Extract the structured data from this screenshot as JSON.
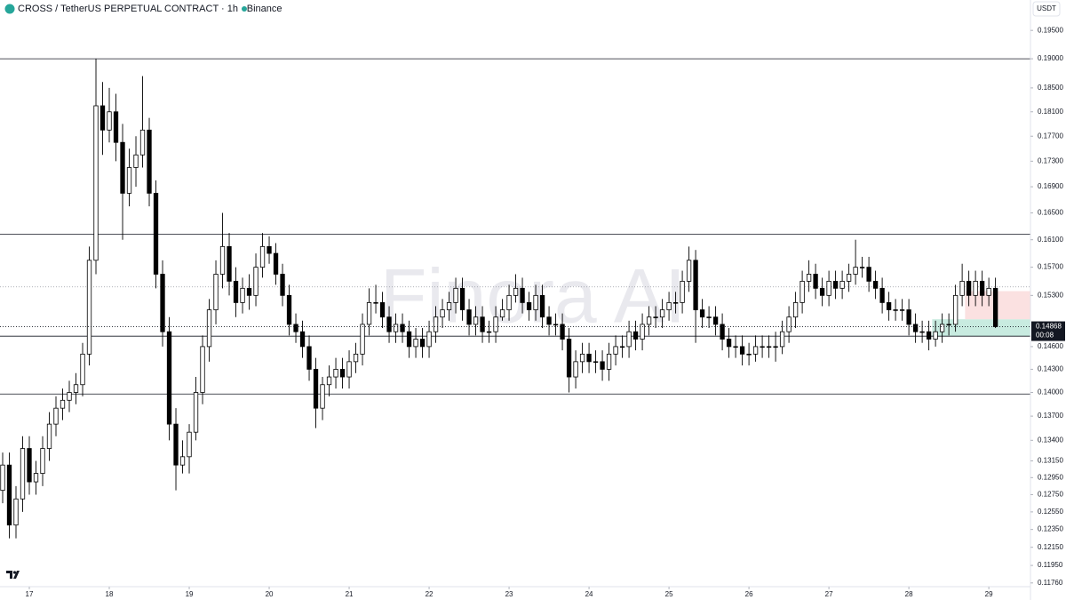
{
  "chart_data": {
    "type": "candlestick",
    "title": "CROSS / TetherUS PERPETUAL CONTRACT · 1h · Binance",
    "currency": "USDT",
    "watermark": "Finora AI",
    "countdown": "00:08",
    "log_scale": true,
    "up_color": "#ffffff",
    "down_color": "#000000",
    "outline_color": "#000000",
    "xlim": [
      -8.8,
      300.5
    ],
    "ylim": [
      0.1172,
      0.2005
    ],
    "xticks": [
      {
        "value": 0,
        "label": "17"
      },
      {
        "value": 24,
        "label": "18"
      },
      {
        "value": 48,
        "label": "19"
      },
      {
        "value": 72,
        "label": "20"
      },
      {
        "value": 96,
        "label": "21"
      },
      {
        "value": 120,
        "label": "22"
      },
      {
        "value": 144,
        "label": "23"
      },
      {
        "value": 168,
        "label": "24"
      },
      {
        "value": 192,
        "label": "25"
      },
      {
        "value": 216,
        "label": "26"
      },
      {
        "value": 240,
        "label": "27"
      },
      {
        "value": 264,
        "label": "28"
      },
      {
        "value": 288,
        "label": "29"
      }
    ],
    "yticks": [
      {
        "value": 0.195,
        "label": "0.19500"
      },
      {
        "value": 0.19,
        "label": "0.19000"
      },
      {
        "value": 0.185,
        "label": "0.18500"
      },
      {
        "value": 0.181,
        "label": "0.18100"
      },
      {
        "value": 0.177,
        "label": "0.17700"
      },
      {
        "value": 0.173,
        "label": "0.17300"
      },
      {
        "value": 0.169,
        "label": "0.16900"
      },
      {
        "value": 0.165,
        "label": "0.16500"
      },
      {
        "value": 0.161,
        "label": "0.16100"
      },
      {
        "value": 0.157,
        "label": "0.15700"
      },
      {
        "value": 0.153,
        "label": "0.15300"
      },
      {
        "value": 0.146,
        "label": "0.14600"
      },
      {
        "value": 0.143,
        "label": "0.14300"
      },
      {
        "value": 0.14,
        "label": "0.14000"
      },
      {
        "value": 0.137,
        "label": "0.13700"
      },
      {
        "value": 0.134,
        "label": "0.13400"
      },
      {
        "value": 0.1315,
        "label": "0.13150"
      },
      {
        "value": 0.1295,
        "label": "0.12950"
      },
      {
        "value": 0.1275,
        "label": "0.12750"
      },
      {
        "value": 0.1255,
        "label": "0.12550"
      },
      {
        "value": 0.1235,
        "label": "0.12350"
      },
      {
        "value": 0.1215,
        "label": "0.12150"
      },
      {
        "value": 0.1195,
        "label": "0.11950"
      },
      {
        "value": 0.1176,
        "label": "0.11760"
      }
    ],
    "levels": [
      0.19,
      0.1618,
      0.1474,
      0.1398
    ],
    "dotted_levels": [
      0.1542
    ],
    "position": {
      "start": 271,
      "entry": 0.1497,
      "stop": 0.1536,
      "target": 0.1474,
      "target_color": "#c8ebe0",
      "stop_color": "#fbe1e1"
    },
    "x": [
      -8,
      -6,
      -4,
      -2,
      0,
      2,
      4,
      6,
      8,
      10,
      12,
      14,
      16,
      18,
      20,
      22,
      24,
      26,
      28,
      30,
      32,
      34,
      36,
      38,
      40,
      42,
      44,
      46,
      48,
      50,
      52,
      54,
      56,
      58,
      60,
      62,
      64,
      66,
      68,
      70,
      72,
      74,
      76,
      78,
      80,
      82,
      84,
      86,
      88,
      90,
      92,
      94,
      96,
      98,
      100,
      102,
      104,
      106,
      108,
      110,
      112,
      114,
      116,
      118,
      120,
      122,
      124,
      126,
      128,
      130,
      132,
      134,
      136,
      138,
      140,
      142,
      144,
      146,
      148,
      150,
      152,
      154,
      156,
      158,
      160,
      162,
      164,
      166,
      168,
      170,
      172,
      174,
      176,
      178,
      180,
      182,
      184,
      186,
      188,
      190,
      192,
      194,
      196,
      198,
      200,
      202,
      204,
      206,
      208,
      210,
      212,
      214,
      216,
      218,
      220,
      222,
      224,
      226,
      228,
      230,
      232,
      234,
      236,
      238,
      240,
      242,
      244,
      246,
      248,
      250,
      252,
      254,
      256,
      258,
      260,
      262,
      264,
      266,
      268,
      270,
      272,
      274,
      276,
      278,
      280,
      282,
      284,
      286,
      288,
      290
    ],
    "open": [
      0.128,
      0.131,
      0.124,
      0.127,
      0.133,
      0.129,
      0.13,
      0.133,
      0.136,
      0.138,
      0.139,
      0.14,
      0.141,
      0.145,
      0.158,
      0.182,
      0.178,
      0.181,
      0.176,
      0.168,
      0.172,
      0.174,
      0.178,
      0.168,
      0.156,
      0.148,
      0.136,
      0.131,
      0.132,
      0.135,
      0.14,
      0.146,
      0.151,
      0.156,
      0.16,
      0.155,
      0.152,
      0.154,
      0.153,
      0.157,
      0.16,
      0.159,
      0.156,
      0.153,
      0.149,
      0.148,
      0.146,
      0.143,
      0.138,
      0.141,
      0.142,
      0.143,
      0.142,
      0.144,
      0.145,
      0.149,
      0.152,
      0.152,
      0.15,
      0.148,
      0.149,
      0.148,
      0.146,
      0.147,
      0.146,
      0.148,
      0.15,
      0.151,
      0.152,
      0.154,
      0.151,
      0.149,
      0.15,
      0.148,
      0.148,
      0.15,
      0.151,
      0.153,
      0.154,
      0.152,
      0.151,
      0.153,
      0.15,
      0.149,
      0.149,
      0.147,
      0.142,
      0.144,
      0.145,
      0.144,
      0.144,
      0.143,
      0.145,
      0.146,
      0.146,
      0.148,
      0.147,
      0.149,
      0.15,
      0.15,
      0.151,
      0.152,
      0.152,
      0.155,
      0.158,
      0.151,
      0.15,
      0.15,
      0.149,
      0.147,
      0.146,
      0.146,
      0.145,
      0.145,
      0.146,
      0.146,
      0.146,
      0.146,
      0.148,
      0.15,
      0.152,
      0.155,
      0.156,
      0.154,
      0.153,
      0.155,
      0.154,
      0.155,
      0.156,
      0.157,
      0.157,
      0.155,
      0.154,
      0.152,
      0.151,
      0.151,
      0.151,
      0.149,
      0.148,
      0.148,
      0.147,
      0.148,
      0.149,
      0.149,
      0.153,
      0.155,
      0.153,
      0.155,
      0.153,
      0.154
    ],
    "high": [
      0.1325,
      0.1325,
      0.1285,
      0.1345,
      0.1345,
      0.1315,
      0.1345,
      0.1375,
      0.1395,
      0.1405,
      0.1415,
      0.1425,
      0.1465,
      0.16,
      0.19,
      0.186,
      0.185,
      0.184,
      0.179,
      0.175,
      0.177,
      0.187,
      0.18,
      0.17,
      0.158,
      0.15,
      0.138,
      0.134,
      0.136,
      0.142,
      0.1475,
      0.1525,
      0.158,
      0.165,
      0.162,
      0.157,
      0.1555,
      0.156,
      0.159,
      0.162,
      0.1615,
      0.1605,
      0.1575,
      0.1545,
      0.1505,
      0.1495,
      0.1475,
      0.1445,
      0.142,
      0.1435,
      0.1445,
      0.1445,
      0.1455,
      0.1465,
      0.1505,
      0.154,
      0.1545,
      0.1535,
      0.1515,
      0.1505,
      0.1505,
      0.1495,
      0.1485,
      0.1485,
      0.1495,
      0.1515,
      0.1525,
      0.1535,
      0.1555,
      0.1555,
      0.1525,
      0.1515,
      0.1515,
      0.1495,
      0.1515,
      0.1525,
      0.1545,
      0.156,
      0.1555,
      0.1535,
      0.1545,
      0.1545,
      0.1515,
      0.1505,
      0.1505,
      0.1485,
      0.1455,
      0.1465,
      0.1465,
      0.1455,
      0.1455,
      0.1465,
      0.1475,
      0.1475,
      0.1495,
      0.1495,
      0.1505,
      0.1515,
      0.1515,
      0.1525,
      0.1535,
      0.1535,
      0.1565,
      0.16,
      0.1595,
      0.1525,
      0.1515,
      0.1515,
      0.1505,
      0.1485,
      0.1475,
      0.1475,
      0.1465,
      0.1475,
      0.1475,
      0.1475,
      0.148,
      0.1495,
      0.1515,
      0.1535,
      0.1565,
      0.158,
      0.1575,
      0.1555,
      0.1565,
      0.1565,
      0.1565,
      0.1575,
      0.161,
      0.1585,
      0.1585,
      0.1565,
      0.1555,
      0.1535,
      0.1525,
      0.1525,
      0.1525,
      0.1505,
      0.1495,
      0.1495,
      0.1495,
      0.1505,
      0.1505,
      0.1545,
      0.1575,
      0.1565,
      0.1565,
      0.1565,
      0.1555,
      0.1555
    ],
    "low": [
      0.1265,
      0.1225,
      0.1225,
      0.1255,
      0.1275,
      0.1275,
      0.1285,
      0.1315,
      0.1345,
      0.1365,
      0.1375,
      0.1385,
      0.1395,
      0.1435,
      0.156,
      0.174,
      0.176,
      0.173,
      0.161,
      0.166,
      0.169,
      0.172,
      0.166,
      0.154,
      0.146,
      0.134,
      0.128,
      0.13,
      0.13,
      0.134,
      0.1385,
      0.144,
      0.149,
      0.154,
      0.153,
      0.15,
      0.1505,
      0.151,
      0.1515,
      0.1555,
      0.1575,
      0.1545,
      0.1515,
      0.1475,
      0.1465,
      0.1445,
      0.1415,
      0.1355,
      0.1365,
      0.1395,
      0.1405,
      0.1405,
      0.1405,
      0.1425,
      0.1435,
      0.1475,
      0.1505,
      0.1485,
      0.1465,
      0.1465,
      0.1465,
      0.1445,
      0.1445,
      0.1445,
      0.1445,
      0.1465,
      0.1485,
      0.1495,
      0.1505,
      0.1495,
      0.1475,
      0.1475,
      0.1465,
      0.1465,
      0.1465,
      0.1495,
      0.1495,
      0.152,
      0.1505,
      0.1495,
      0.1495,
      0.1485,
      0.1475,
      0.1475,
      0.1455,
      0.14,
      0.1405,
      0.1425,
      0.1425,
      0.1425,
      0.1415,
      0.1415,
      0.1435,
      0.1445,
      0.1445,
      0.1455,
      0.1455,
      0.1475,
      0.1485,
      0.1485,
      0.1495,
      0.1505,
      0.1505,
      0.1535,
      0.1465,
      0.1485,
      0.1485,
      0.1475,
      0.1455,
      0.1445,
      0.1445,
      0.1435,
      0.1435,
      0.144,
      0.1445,
      0.1445,
      0.144,
      0.145,
      0.1465,
      0.1485,
      0.1505,
      0.1535,
      0.1525,
      0.1515,
      0.1515,
      0.1525,
      0.1525,
      0.1535,
      0.1545,
      0.1555,
      0.1535,
      0.1525,
      0.1505,
      0.1495,
      0.1495,
      0.1495,
      0.1475,
      0.1465,
      0.1465,
      0.1455,
      0.146,
      0.1465,
      0.1475,
      0.148,
      0.1515,
      0.1515,
      0.1515,
      0.1515,
      0.1515,
      0.1485
    ],
    "close": [
      0.131,
      0.124,
      0.127,
      0.133,
      0.129,
      0.13,
      0.133,
      0.136,
      0.138,
      0.139,
      0.14,
      0.141,
      0.145,
      0.158,
      0.182,
      0.178,
      0.181,
      0.176,
      0.168,
      0.172,
      0.174,
      0.178,
      0.168,
      0.156,
      0.148,
      0.136,
      0.131,
      0.132,
      0.135,
      0.14,
      0.146,
      0.151,
      0.156,
      0.16,
      0.155,
      0.152,
      0.154,
      0.153,
      0.157,
      0.16,
      0.159,
      0.156,
      0.153,
      0.149,
      0.148,
      0.146,
      0.143,
      0.138,
      0.141,
      0.142,
      0.143,
      0.142,
      0.144,
      0.145,
      0.149,
      0.152,
      0.152,
      0.15,
      0.148,
      0.149,
      0.148,
      0.146,
      0.147,
      0.146,
      0.148,
      0.15,
      0.151,
      0.152,
      0.154,
      0.151,
      0.149,
      0.15,
      0.148,
      0.148,
      0.15,
      0.151,
      0.153,
      0.154,
      0.152,
      0.151,
      0.153,
      0.15,
      0.149,
      0.149,
      0.147,
      0.142,
      0.144,
      0.145,
      0.144,
      0.144,
      0.143,
      0.145,
      0.146,
      0.146,
      0.148,
      0.147,
      0.149,
      0.15,
      0.15,
      0.151,
      0.152,
      0.152,
      0.155,
      0.158,
      0.151,
      0.15,
      0.15,
      0.149,
      0.147,
      0.146,
      0.146,
      0.145,
      0.145,
      0.146,
      0.146,
      0.146,
      0.146,
      0.148,
      0.15,
      0.152,
      0.155,
      0.156,
      0.154,
      0.153,
      0.155,
      0.154,
      0.155,
      0.156,
      0.157,
      0.157,
      0.155,
      0.154,
      0.152,
      0.151,
      0.151,
      0.151,
      0.149,
      0.148,
      0.148,
      0.147,
      0.148,
      0.149,
      0.149,
      0.153,
      0.155,
      0.153,
      0.155,
      0.153,
      0.154,
      0.14868
    ]
  }
}
